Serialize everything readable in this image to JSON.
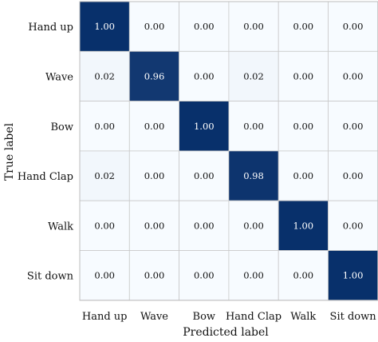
{
  "chart_data": {
    "type": "heatmap",
    "xlabel": "Predicted label",
    "ylabel": "True label",
    "x_categories": [
      "Hand up",
      "Wave",
      "Bow",
      "Hand Clap",
      "Walk",
      "Sit down"
    ],
    "y_categories": [
      "Hand up",
      "Wave",
      "Bow",
      "Hand Clap",
      "Walk",
      "Sit down"
    ],
    "values": [
      [
        1.0,
        0.0,
        0.0,
        0.0,
        0.0,
        0.0
      ],
      [
        0.02,
        0.96,
        0.0,
        0.02,
        0.0,
        0.0
      ],
      [
        0.0,
        0.0,
        1.0,
        0.0,
        0.0,
        0.0
      ],
      [
        0.02,
        0.0,
        0.0,
        0.98,
        0.0,
        0.0
      ],
      [
        0.0,
        0.0,
        0.0,
        0.0,
        1.0,
        0.0
      ],
      [
        0.0,
        0.0,
        0.0,
        0.0,
        0.0,
        1.0
      ]
    ],
    "value_format": "2 decimals",
    "colormap": {
      "low": "#f7fbff",
      "high": "#08306b"
    },
    "grid": true,
    "legend": "none"
  }
}
